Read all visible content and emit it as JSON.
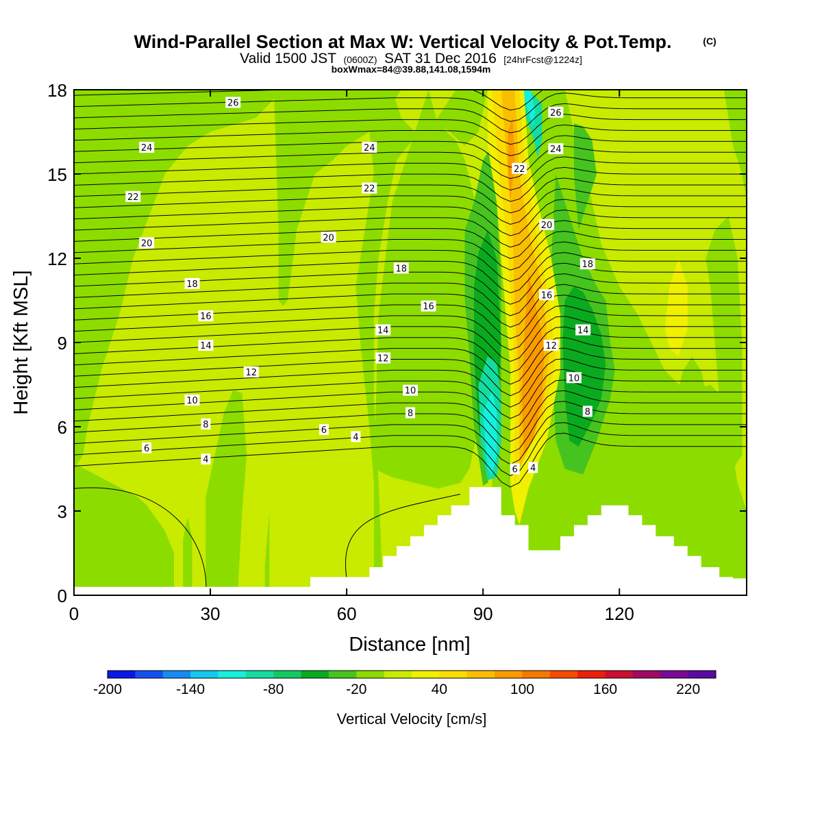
{
  "header": {
    "title": "Wind-Parallel Section at Max W: Vertical Velocity & Pot.Temp.",
    "copyright": "(C)",
    "subtitle_valid": "Valid 1500 JST",
    "subtitle_zulu": "(0600Z)",
    "subtitle_date": "SAT 31 Dec 2016",
    "subtitle_fcst": "[24hrFcst@1224z]",
    "subtitle_box": "boxWmax=84@39.88,141.08,1594m"
  },
  "chart_data": {
    "type": "heatmap",
    "xlabel": "Distance [nm]",
    "ylabel": "Height [Kft MSL]",
    "xlim": [
      0,
      148
    ],
    "ylim": [
      0,
      18
    ],
    "x_ticks": [
      0,
      30,
      60,
      90,
      120
    ],
    "y_ticks": [
      0,
      3,
      6,
      9,
      12,
      15,
      18
    ],
    "colorbar": {
      "label": "Vertical Velocity [cm/s]",
      "tick_labels": [
        "-200",
        "-140",
        "-80",
        "-20",
        "40",
        "100",
        "160",
        "220"
      ],
      "tick_values": [
        -200,
        -140,
        -80,
        -20,
        40,
        100,
        160,
        220
      ],
      "range": [
        -200,
        240
      ],
      "step": 20,
      "colors": [
        "#0a18e6",
        "#1450f0",
        "#148cf0",
        "#14c8f0",
        "#14f0dc",
        "#14dca0",
        "#14c864",
        "#0aaa1e",
        "#46c31e",
        "#8cdc00",
        "#c8eb00",
        "#f0f000",
        "#fadc00",
        "#fabe00",
        "#fa9b00",
        "#f57800",
        "#f54b00",
        "#eb1e0a",
        "#c80f32",
        "#a00a64",
        "#780a96",
        "#5a0aa0"
      ]
    },
    "contour_labels": [
      {
        "text": "26",
        "x": 35,
        "y": 17.55
      },
      {
        "text": "24",
        "x": 16,
        "y": 15.95
      },
      {
        "text": "24",
        "x": 65,
        "y": 15.95
      },
      {
        "text": "22",
        "x": 13,
        "y": 14.2
      },
      {
        "text": "22",
        "x": 65,
        "y": 14.5
      },
      {
        "text": "20",
        "x": 16,
        "y": 12.55
      },
      {
        "text": "20",
        "x": 56,
        "y": 12.75
      },
      {
        "text": "18",
        "x": 26,
        "y": 11.1
      },
      {
        "text": "18",
        "x": 72,
        "y": 11.65
      },
      {
        "text": "16",
        "x": 29,
        "y": 9.95
      },
      {
        "text": "16",
        "x": 78,
        "y": 10.3
      },
      {
        "text": "14",
        "x": 29,
        "y": 8.9
      },
      {
        "text": "14",
        "x": 68,
        "y": 9.45
      },
      {
        "text": "12",
        "x": 39,
        "y": 7.95
      },
      {
        "text": "12",
        "x": 68,
        "y": 8.45
      },
      {
        "text": "10",
        "x": 26,
        "y": 6.95
      },
      {
        "text": "10",
        "x": 74,
        "y": 7.3
      },
      {
        "text": "8",
        "x": 29,
        "y": 6.1
      },
      {
        "text": "8",
        "x": 74,
        "y": 6.5
      },
      {
        "text": "6",
        "x": 16,
        "y": 5.25
      },
      {
        "text": "6",
        "x": 55,
        "y": 5.9
      },
      {
        "text": "4",
        "x": 29,
        "y": 4.85
      },
      {
        "text": "4",
        "x": 62,
        "y": 5.65
      },
      {
        "text": "26",
        "x": 106,
        "y": 17.2
      },
      {
        "text": "24",
        "x": 106,
        "y": 15.9
      },
      {
        "text": "22",
        "x": 98,
        "y": 15.2
      },
      {
        "text": "20",
        "x": 104,
        "y": 13.2
      },
      {
        "text": "18",
        "x": 113,
        "y": 11.8
      },
      {
        "text": "16",
        "x": 104,
        "y": 10.7
      },
      {
        "text": "14",
        "x": 112,
        "y": 9.45
      },
      {
        "text": "12",
        "x": 105,
        "y": 8.9
      },
      {
        "text": "10",
        "x": 110,
        "y": 7.75
      },
      {
        "text": "8",
        "x": 113,
        "y": 6.55
      },
      {
        "text": "6",
        "x": 97,
        "y": 4.5
      },
      {
        "text": "4",
        "x": 101,
        "y": 4.55
      }
    ],
    "terrain_profile": [
      [
        0,
        0.3
      ],
      [
        52,
        0.3
      ],
      [
        52,
        0.65
      ],
      [
        65,
        0.65
      ],
      [
        65,
        1.0
      ],
      [
        68,
        1.0
      ],
      [
        68,
        1.4
      ],
      [
        71,
        1.4
      ],
      [
        71,
        1.75
      ],
      [
        74,
        1.75
      ],
      [
        74,
        2.1
      ],
      [
        77,
        2.1
      ],
      [
        77,
        2.5
      ],
      [
        80,
        2.5
      ],
      [
        80,
        2.85
      ],
      [
        83,
        2.85
      ],
      [
        83,
        3.2
      ],
      [
        87,
        3.2
      ],
      [
        87,
        3.85
      ],
      [
        94,
        3.85
      ],
      [
        94,
        2.85
      ],
      [
        97,
        2.85
      ],
      [
        97,
        2.5
      ],
      [
        100,
        2.5
      ],
      [
        100,
        1.6
      ],
      [
        107,
        1.6
      ],
      [
        107,
        2.1
      ],
      [
        110,
        2.1
      ],
      [
        110,
        2.5
      ],
      [
        113,
        2.5
      ],
      [
        113,
        2.85
      ],
      [
        116,
        2.85
      ],
      [
        116,
        3.2
      ],
      [
        122,
        3.2
      ],
      [
        122,
        2.85
      ],
      [
        125,
        2.85
      ],
      [
        125,
        2.5
      ],
      [
        128,
        2.5
      ],
      [
        128,
        2.1
      ],
      [
        132,
        2.1
      ],
      [
        132,
        1.75
      ],
      [
        135,
        1.75
      ],
      [
        135,
        1.4
      ],
      [
        138,
        1.4
      ],
      [
        138,
        1.0
      ],
      [
        142,
        1.0
      ],
      [
        142,
        0.65
      ],
      [
        145,
        0.65
      ],
      [
        145,
        0.6
      ],
      [
        148,
        0.6
      ]
    ]
  }
}
